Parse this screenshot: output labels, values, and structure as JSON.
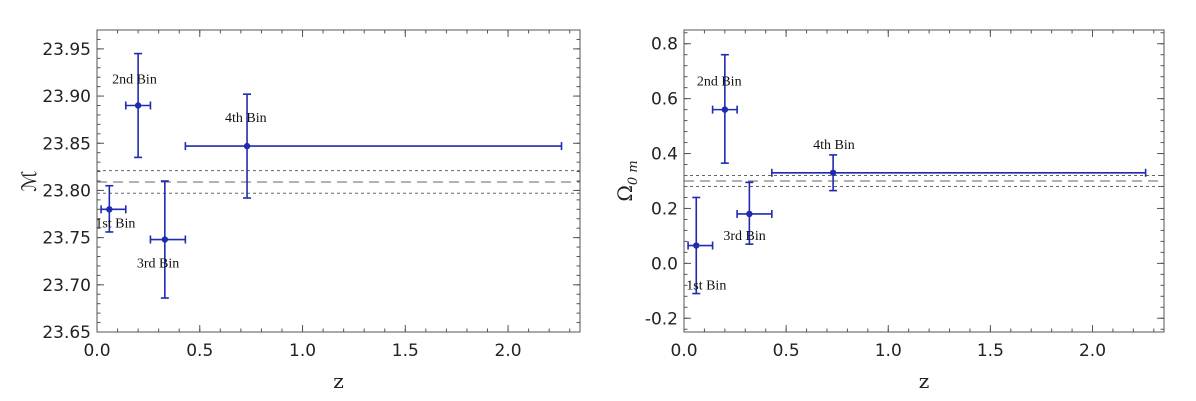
{
  "chart_data": [
    {
      "type": "scatter",
      "xlabel": "z",
      "ylabel": "ℳ",
      "xlim": [
        0.0,
        2.35
      ],
      "ylim": [
        23.65,
        23.97
      ],
      "x_ticks": [
        "0.0",
        "0.5",
        "1.0",
        "1.5",
        "2.0"
      ],
      "x_tick_values": [
        0.0,
        0.5,
        1.0,
        1.5,
        2.0
      ],
      "y_ticks": [
        "23.65",
        "23.70",
        "23.75",
        "23.80",
        "23.85",
        "23.90",
        "23.95"
      ],
      "y_tick_values": [
        23.65,
        23.7,
        23.75,
        23.8,
        23.85,
        23.9,
        23.95
      ],
      "grid": false,
      "reference_lines": [
        23.797,
        23.809,
        23.821
      ],
      "points": [
        {
          "label": "1st Bin",
          "x": 0.06,
          "x_low": 0.02,
          "x_high": 0.14,
          "y": 23.78,
          "y_low": 23.756,
          "y_high": 23.805
        },
        {
          "label": "2nd Bin",
          "x": 0.2,
          "x_low": 0.14,
          "x_high": 0.26,
          "y": 23.89,
          "y_low": 23.835,
          "y_high": 23.945
        },
        {
          "label": "3rd Bin",
          "x": 0.33,
          "x_low": 0.26,
          "x_high": 0.43,
          "y": 23.748,
          "y_low": 23.686,
          "y_high": 23.81
        },
        {
          "label": "4th Bin",
          "x": 0.73,
          "x_low": 0.43,
          "x_high": 2.26,
          "y": 23.847,
          "y_low": 23.792,
          "y_high": 23.902
        }
      ]
    },
    {
      "type": "scatter",
      "xlabel": "z",
      "ylabel": "Ω",
      "ylabel_sub": "0 m",
      "xlim": [
        0.0,
        2.35
      ],
      "ylim": [
        -0.25,
        0.85
      ],
      "x_ticks": [
        "0.0",
        "0.5",
        "1.0",
        "1.5",
        "2.0"
      ],
      "x_tick_values": [
        0.0,
        0.5,
        1.0,
        1.5,
        2.0
      ],
      "y_ticks": [
        "-0.2",
        "0.0",
        "0.2",
        "0.4",
        "0.6",
        "0.8"
      ],
      "y_tick_values": [
        -0.2,
        0.0,
        0.2,
        0.4,
        0.6,
        0.8
      ],
      "grid": false,
      "reference_lines": [
        0.28,
        0.3,
        0.32
      ],
      "points": [
        {
          "label": "1st Bin",
          "x": 0.06,
          "x_low": 0.02,
          "x_high": 0.14,
          "y": 0.065,
          "y_low": -0.11,
          "y_high": 0.24
        },
        {
          "label": "2nd Bin",
          "x": 0.2,
          "x_low": 0.14,
          "x_high": 0.26,
          "y": 0.56,
          "y_low": 0.365,
          "y_high": 0.76
        },
        {
          "label": "3rd Bin",
          "x": 0.32,
          "x_low": 0.26,
          "x_high": 0.43,
          "y": 0.18,
          "y_low": 0.07,
          "y_high": 0.295
        },
        {
          "label": "4th Bin",
          "x": 0.73,
          "x_low": 0.43,
          "x_high": 2.26,
          "y": 0.33,
          "y_low": 0.265,
          "y_high": 0.395
        }
      ]
    }
  ],
  "colors": {
    "points": "#1f2bb0",
    "frame": "#555555",
    "reference": "#666666"
  }
}
